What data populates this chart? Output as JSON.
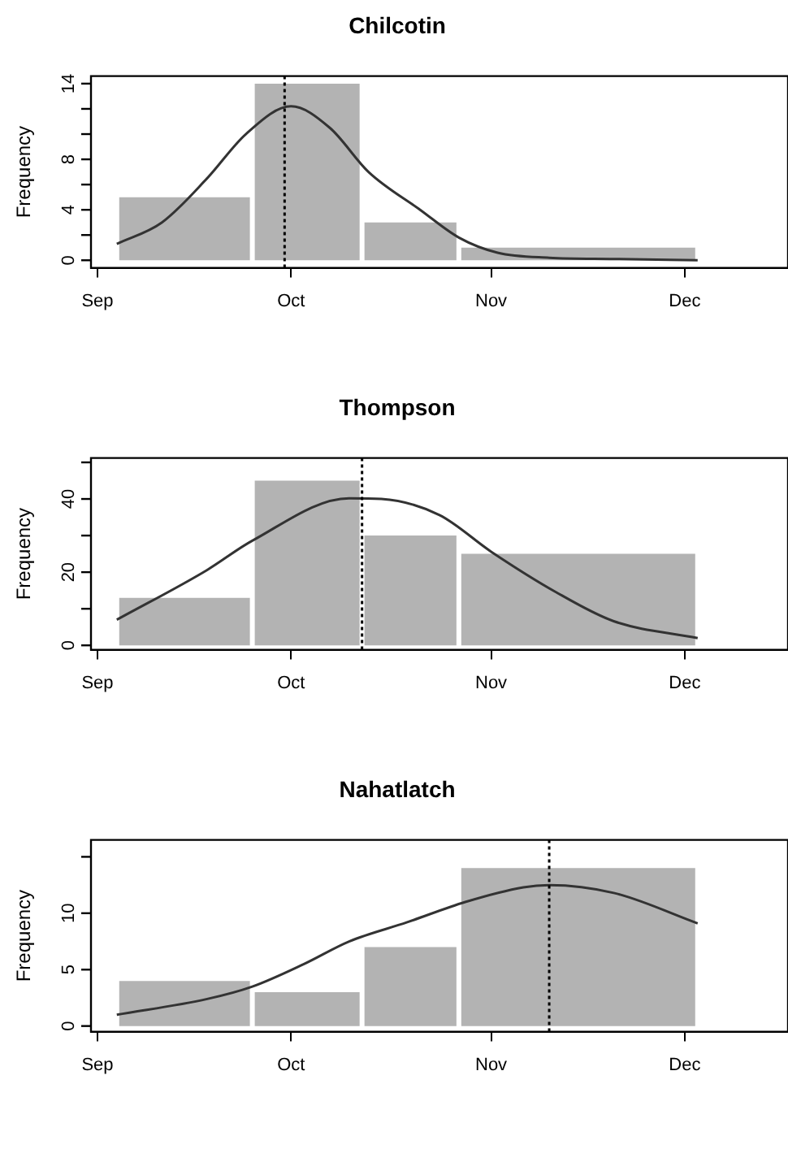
{
  "chart_data": [
    {
      "type": "histogram",
      "title": "Chilcotin",
      "ylabel": "Frequency",
      "bins": [
        "--09-04",
        "--09-25",
        "--10-12",
        "--10-27",
        "--12-03"
      ],
      "values": [
        5,
        14,
        3,
        1
      ],
      "color": "#b3b3b3",
      "xlim": [
        "--08-31",
        "--12-17"
      ],
      "xticks": [
        {
          "value": "--09-01",
          "label": "Sep"
        },
        {
          "value": "--10-01",
          "label": "Oct"
        },
        {
          "value": "--11-01",
          "label": "Nov"
        },
        {
          "value": "--12-01",
          "label": "Dec"
        }
      ],
      "ylim": [
        -0.6,
        14.6
      ],
      "yticks": [
        0,
        {
          "value": 2,
          "label": null
        },
        4,
        {
          "value": 6,
          "label": null
        },
        8,
        {
          "value": 10,
          "label": null
        },
        {
          "value": 12,
          "label": null
        },
        14
      ],
      "grid": false,
      "legend": false,
      "marker": "none",
      "series": [
        {
          "type": "line",
          "color": "#333333",
          "x": [
            "--09-04",
            "--09-11",
            "--09-18",
            "--09-24",
            "--10-01",
            "--10-07",
            "--10-13",
            "--10-21",
            "--10-27",
            "--11-02",
            "--11-10",
            "--11-20",
            "--12-03"
          ],
          "values": [
            1.3,
            3,
            6.5,
            10,
            12.2,
            10.5,
            7,
            4,
            1.8,
            0.6,
            0.2,
            0.1,
            0
          ]
        }
      ],
      "ref_lines": [
        {
          "axis": "x",
          "value": "--09-30",
          "line_style": "dotted",
          "color": "#000000"
        }
      ]
    },
    {
      "type": "histogram",
      "title": "Thompson",
      "ylabel": "Frequency",
      "bins": [
        "--09-04",
        "--09-25",
        "--10-12",
        "--10-27",
        "--12-03"
      ],
      "values": [
        13,
        45,
        30,
        25
      ],
      "color": "#b3b3b3",
      "xlim": [
        "--08-31",
        "--12-17"
      ],
      "xticks": [
        {
          "value": "--09-01",
          "label": "Sep"
        },
        {
          "value": "--10-01",
          "label": "Oct"
        },
        {
          "value": "--11-01",
          "label": "Nov"
        },
        {
          "value": "--12-01",
          "label": "Dec"
        }
      ],
      "ylim": [
        -1.2,
        51.2
      ],
      "yticks": [
        0,
        {
          "value": 10,
          "label": null
        },
        20,
        {
          "value": 30,
          "label": null
        },
        40,
        {
          "value": 50,
          "label": null
        }
      ],
      "grid": false,
      "legend": false,
      "marker": "none",
      "series": [
        {
          "type": "line",
          "color": "#333333",
          "x": [
            "--09-04",
            "--09-18",
            "--09-25",
            "--10-10",
            "--10-15",
            "--10-24",
            "--11-01",
            "--11-11",
            "--11-20",
            "--12-03"
          ],
          "values": [
            7,
            20.6,
            28.6,
            40.2,
            40,
            35.6,
            25.6,
            14.6,
            6.6,
            2
          ]
        }
      ],
      "ref_lines": [
        {
          "axis": "x",
          "value": "--10-12",
          "line_style": "dotted",
          "color": "#000000"
        }
      ]
    },
    {
      "type": "histogram",
      "title": "Nahatlatch",
      "ylabel": "Frequency",
      "bins": [
        "--09-04",
        "--09-25",
        "--10-12",
        "--10-27",
        "--12-03"
      ],
      "values": [
        4,
        3,
        7,
        14
      ],
      "color": "#b3b3b3",
      "xlim": [
        "--08-31",
        "--12-17"
      ],
      "xticks": [
        {
          "value": "--09-01",
          "label": "Sep"
        },
        {
          "value": "--10-01",
          "label": "Oct"
        },
        {
          "value": "--11-01",
          "label": "Nov"
        },
        {
          "value": "--12-01",
          "label": "Dec"
        }
      ],
      "ylim": [
        -0.5,
        16.5
      ],
      "yticks": [
        0,
        5,
        10,
        {
          "value": 15,
          "label": null
        }
      ],
      "grid": false,
      "legend": false,
      "marker": "none",
      "series": [
        {
          "type": "line",
          "color": "#333333",
          "x": [
            "--09-04",
            "--09-18",
            "--09-25",
            "--10-03",
            "--10-10",
            "--10-19",
            "--10-28",
            "--11-06",
            "--11-10",
            "--11-20",
            "--12-03"
          ],
          "values": [
            1,
            2.4,
            3.5,
            5.5,
            7.5,
            9.2,
            11,
            12.3,
            12.5,
            11.8,
            9.1
          ]
        }
      ],
      "ref_lines": [
        {
          "axis": "x",
          "value": "--11-10",
          "line_style": "dotted",
          "color": "#000000"
        }
      ]
    }
  ]
}
